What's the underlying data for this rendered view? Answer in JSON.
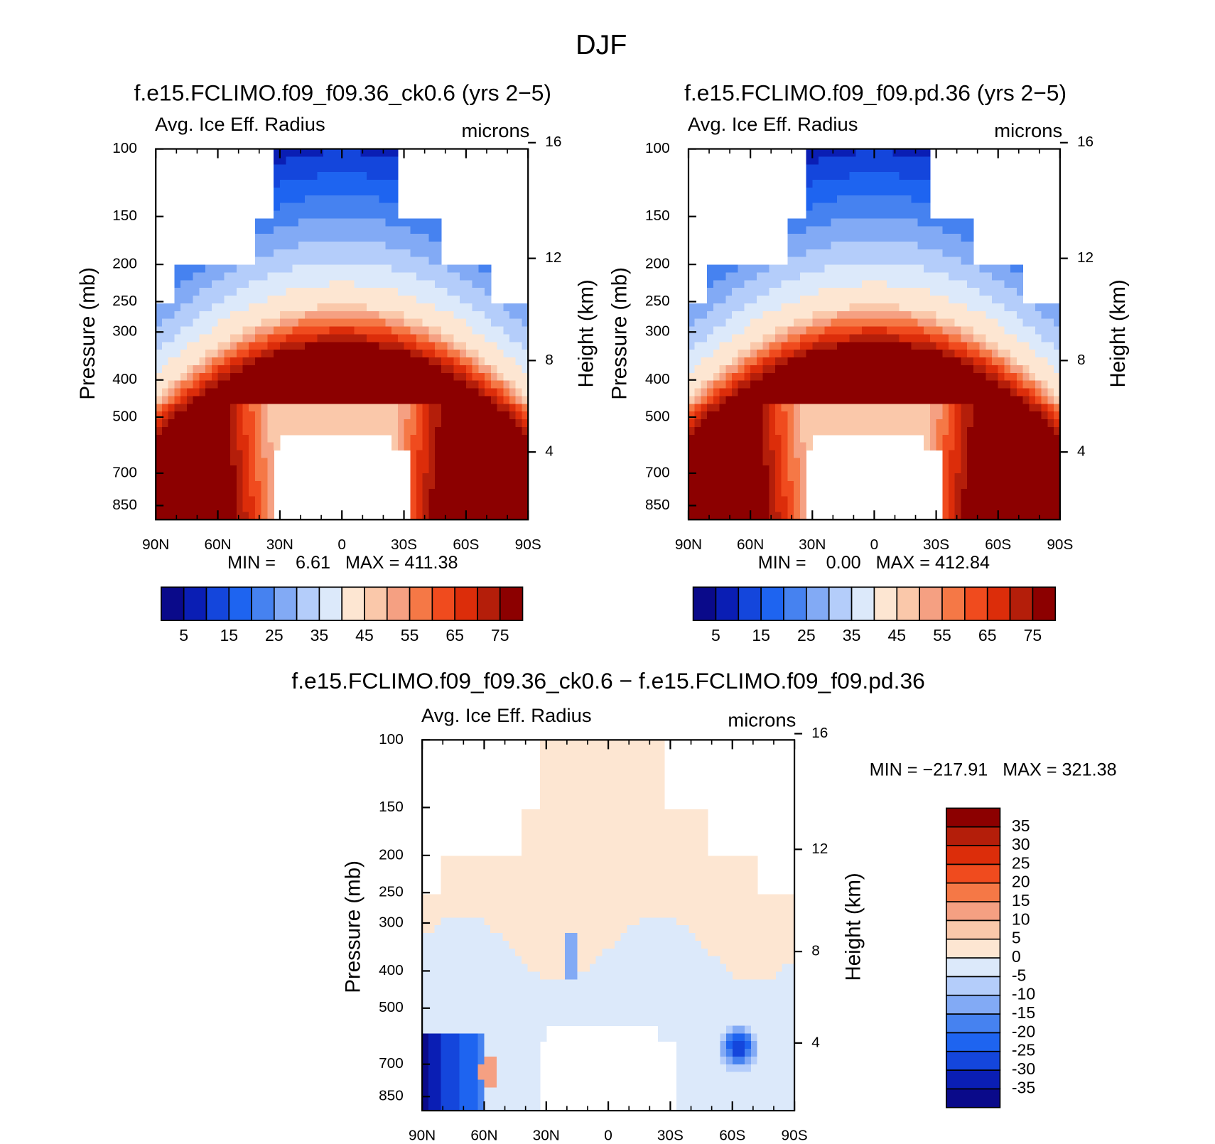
{
  "title": "DJF",
  "chart_data": [
    {
      "type": "contour",
      "title": "f.e15.FCLIMO.f09_f09.36_ck0.6 (yrs 2−5)",
      "left_string": "Avg. Ice Eff. Radius",
      "right_string": "microns",
      "ylabel": "Pressure (mb)",
      "y2label": "Height (km)",
      "stats": "MIN =    6.61   MAX = 411.38",
      "xlim": [
        90,
        -90
      ],
      "xticks": [
        {
          "value": 90,
          "label": "90N"
        },
        {
          "value": 60,
          "label": "60N"
        },
        {
          "value": 30,
          "label": "30N"
        },
        0,
        {
          "value": -30,
          "label": "30S"
        },
        {
          "value": -60,
          "label": "60S"
        },
        {
          "value": -90,
          "label": "90S"
        }
      ],
      "ylim": [
        100,
        925
      ],
      "log_y": true,
      "yticks": [
        100,
        150,
        200,
        250,
        300,
        400,
        500,
        700,
        850
      ],
      "y2ticks": [
        4,
        8,
        12,
        16
      ],
      "colorbar": {
        "orientation": "horizontal",
        "levels": [
          5,
          10,
          15,
          20,
          25,
          30,
          35,
          40,
          45,
          50,
          55,
          60,
          65,
          70,
          75
        ],
        "ticks": [
          5,
          15,
          25,
          35,
          45,
          55,
          65,
          75
        ],
        "colors": [
          "#0a0a8a",
          "#0a1eb4",
          "#1446dc",
          "#1e64f0",
          "#4682f0",
          "#82aaf5",
          "#b4cdfa",
          "#dce9fa",
          "#fde6d2",
          "#fac8aa",
          "#f5a082",
          "#f57846",
          "#f04b1e",
          "#dc2d0a",
          "#b41e0a",
          "#8c0000"
        ]
      }
    },
    {
      "type": "contour",
      "title": "f.e15.FCLIMO.f09_f09.pd.36 (yrs 2−5)",
      "left_string": "Avg. Ice Eff. Radius",
      "right_string": "microns",
      "ylabel": "Pressure (mb)",
      "y2label": "Height (km)",
      "stats": "MIN =    0.00   MAX = 412.84",
      "xlim": [
        90,
        -90
      ],
      "xticks": [
        {
          "value": 90,
          "label": "90N"
        },
        {
          "value": 60,
          "label": "60N"
        },
        {
          "value": 30,
          "label": "30N"
        },
        0,
        {
          "value": -30,
          "label": "30S"
        },
        {
          "value": -60,
          "label": "60S"
        },
        {
          "value": -90,
          "label": "90S"
        }
      ],
      "ylim": [
        100,
        925
      ],
      "log_y": true,
      "yticks": [
        100,
        150,
        200,
        250,
        300,
        400,
        500,
        700,
        850
      ],
      "y2ticks": [
        4,
        8,
        12,
        16
      ],
      "colorbar": {
        "orientation": "horizontal",
        "levels": [
          5,
          10,
          15,
          20,
          25,
          30,
          35,
          40,
          45,
          50,
          55,
          60,
          65,
          70,
          75
        ],
        "ticks": [
          5,
          15,
          25,
          35,
          45,
          55,
          65,
          75
        ],
        "colors": [
          "#0a0a8a",
          "#0a1eb4",
          "#1446dc",
          "#1e64f0",
          "#4682f0",
          "#82aaf5",
          "#b4cdfa",
          "#dce9fa",
          "#fde6d2",
          "#fac8aa",
          "#f5a082",
          "#f57846",
          "#f04b1e",
          "#dc2d0a",
          "#b41e0a",
          "#8c0000"
        ]
      }
    },
    {
      "type": "contour",
      "title": "f.e15.FCLIMO.f09_f09.36_ck0.6 − f.e15.FCLIMO.f09_f09.pd.36",
      "left_string": "Avg. Ice Eff. Radius",
      "right_string": "microns",
      "ylabel": "Pressure (mb)",
      "y2label": "Height (km)",
      "stats": "MIN = −217.91   MAX = 321.38",
      "xlim": [
        90,
        -90
      ],
      "xticks": [
        {
          "value": 90,
          "label": "90N"
        },
        {
          "value": 60,
          "label": "60N"
        },
        {
          "value": 30,
          "label": "30N"
        },
        0,
        {
          "value": -30,
          "label": "30S"
        },
        {
          "value": -60,
          "label": "60S"
        },
        {
          "value": -90,
          "label": "90S"
        }
      ],
      "ylim": [
        100,
        925
      ],
      "log_y": true,
      "yticks": [
        100,
        150,
        200,
        250,
        300,
        400,
        500,
        700,
        850
      ],
      "y2ticks": [
        4,
        8,
        12,
        16
      ],
      "colorbar": {
        "orientation": "vertical",
        "levels": [
          -35,
          -30,
          -25,
          -20,
          -15,
          -10,
          -5,
          0,
          5,
          10,
          15,
          20,
          25,
          30,
          35
        ],
        "ticks": [
          -35,
          -30,
          -25,
          -20,
          -15,
          -10,
          -5,
          0,
          5,
          10,
          15,
          20,
          25,
          30,
          35
        ],
        "colors": [
          "#0a0a8a",
          "#0a1eb4",
          "#1446dc",
          "#1e64f0",
          "#4682f0",
          "#82aaf5",
          "#b4cdfa",
          "#dce9fa",
          "#fde6d2",
          "#fac8aa",
          "#f5a082",
          "#f57846",
          "#f04b1e",
          "#dc2d0a",
          "#b41e0a",
          "#8c0000"
        ]
      }
    }
  ]
}
